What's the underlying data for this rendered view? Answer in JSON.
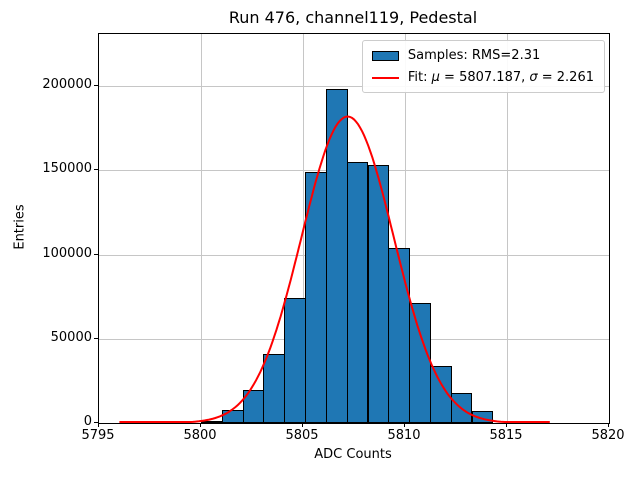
{
  "chart_data": {
    "type": "bar",
    "subtype": "histogram-with-gaussian-fit",
    "title": "Run 476, channel119, Pedestal",
    "xlabel": "ADC Counts",
    "ylabel": "Entries",
    "xlim": [
      5795,
      5820
    ],
    "ylim": [
      0,
      231000
    ],
    "xticks": [
      5795,
      5800,
      5805,
      5810,
      5815,
      5820
    ],
    "xtick_labels": [
      "5795",
      "5800",
      "5805",
      "5810",
      "5815",
      "5820"
    ],
    "yticks": [
      0,
      50000,
      100000,
      150000,
      200000
    ],
    "ytick_labels": [
      "0",
      "50000",
      "100000",
      "150000",
      "200000"
    ],
    "grid": true,
    "legend_position": "upper right",
    "colors": {
      "bar_fill": "#1f77b4",
      "bar_edge": "#000000",
      "fit_line": "#ff0000",
      "grid": "#c6c6c6",
      "spine": "#000000",
      "legend_edge": "#cccccc"
    },
    "bins": {
      "edges": [
        5800.0,
        5801.02,
        5802.04,
        5803.06,
        5804.08,
        5805.1,
        5806.12,
        5807.14,
        5808.16,
        5809.18,
        5810.2,
        5811.22,
        5812.24,
        5813.26,
        5814.28
      ],
      "counts": [
        1500,
        8000,
        19500,
        40800,
        74200,
        149300,
        198600,
        155300,
        153500,
        103700,
        71300,
        33700,
        17800,
        7000
      ]
    },
    "fit": {
      "mu": 5807.187,
      "sigma": 2.261,
      "peak_amplitude": 182000,
      "x_range": [
        5796.0,
        5817.1
      ]
    },
    "legend": {
      "samples_label": "Samples: RMS=2.31",
      "fit_prefix": "Fit: ",
      "fit_mu_symbol": "μ",
      "fit_mu_rest": " = 5807.187, ",
      "fit_sigma_symbol": "σ",
      "fit_sigma_rest": " = 2.261"
    },
    "stats": {
      "rms": 2.31,
      "fit_mu": 5807.187,
      "fit_sigma": 2.261
    }
  }
}
